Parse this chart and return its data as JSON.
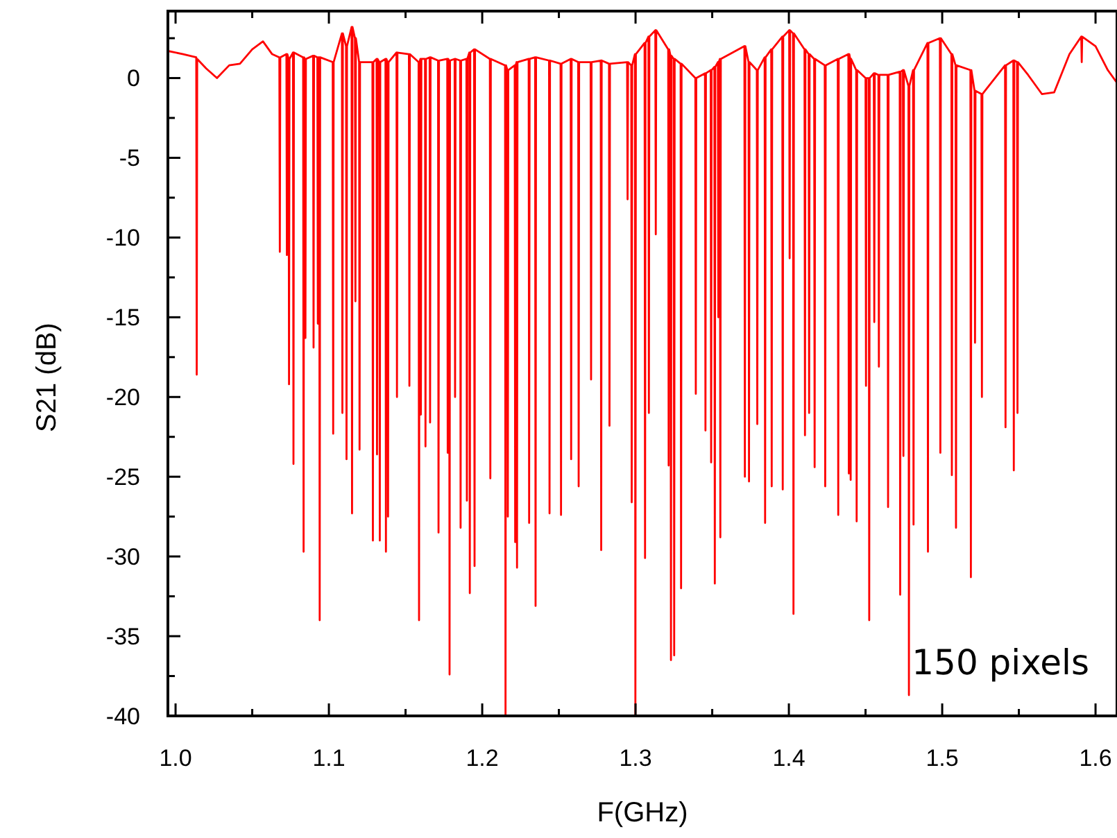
{
  "chart_data": {
    "type": "line",
    "xlabel": "F(GHz)",
    "ylabel": "S21 (dB)",
    "xlim": [
      0.995,
      1.614
    ],
    "ylim": [
      -40,
      4.2
    ],
    "xticks": [
      {
        "value": 1.0,
        "label": "1.0"
      },
      {
        "value": 1.05,
        "label": null
      },
      {
        "value": 1.1,
        "label": "1.1"
      },
      {
        "value": 1.15,
        "label": null
      },
      {
        "value": 1.2,
        "label": "1.2"
      },
      {
        "value": 1.25,
        "label": null
      },
      {
        "value": 1.3,
        "label": "1.3"
      },
      {
        "value": 1.35,
        "label": null
      },
      {
        "value": 1.4,
        "label": "1.4"
      },
      {
        "value": 1.45,
        "label": null
      },
      {
        "value": 1.5,
        "label": "1.5"
      },
      {
        "value": 1.55,
        "label": null
      },
      {
        "value": 1.6,
        "label": "1.6"
      }
    ],
    "yticks": [
      0,
      {
        "value": -2.5,
        "label": null
      },
      -5,
      {
        "value": -7.5,
        "label": null
      },
      -10,
      {
        "value": -12.5,
        "label": null
      },
      -15,
      {
        "value": -17.5,
        "label": null
      },
      -20,
      {
        "value": -22.5,
        "label": null
      },
      -25,
      {
        "value": -27.5,
        "label": null
      },
      -30,
      {
        "value": -32.5,
        "label": null
      },
      -35,
      {
        "value": -37.5,
        "label": null
      },
      -40,
      {
        "value": 2.5,
        "label": null
      }
    ],
    "grid": false,
    "marker": "none",
    "line_style": "solid",
    "annotations": [
      "150 pixels"
    ],
    "series": [
      {
        "color": "#ff0000",
        "x": [
          0.995,
          1.005,
          1.0135,
          1.0138,
          1.0141,
          1.02,
          1.027,
          1.035,
          1.042,
          1.05,
          1.057,
          1.063,
          1.0677,
          1.068,
          1.0683,
          1.0723,
          1.0726,
          1.0729,
          1.0737,
          1.074,
          1.0743,
          1.0766,
          1.0769,
          1.0772,
          1.0832,
          1.0835,
          1.0838,
          1.0844,
          1.0847,
          1.085,
          1.0897,
          1.09,
          1.0903,
          1.0925,
          1.0928,
          1.0931,
          1.0937,
          1.094,
          1.0943,
          1.1025,
          1.1028,
          1.1031,
          1.1085,
          1.1088,
          1.1091,
          1.1112,
          1.1115,
          1.1118,
          1.1148,
          1.1151,
          1.1154,
          1.117,
          1.1173,
          1.1176,
          1.1197,
          1.12,
          1.1203,
          1.1284,
          1.1287,
          1.129,
          1.1311,
          1.1314,
          1.1317,
          1.1329,
          1.1332,
          1.1335,
          1.1369,
          1.1372,
          1.1375,
          1.1383,
          1.1386,
          1.1389,
          1.1441,
          1.1444,
          1.1447,
          1.1522,
          1.1525,
          1.1528,
          1.1585,
          1.1588,
          1.1591,
          1.1597,
          1.16,
          1.1603,
          1.1627,
          1.163,
          1.1633,
          1.1657,
          1.166,
          1.1663,
          1.1712,
          1.1715,
          1.1718,
          1.1772,
          1.1775,
          1.1778,
          1.1784,
          1.1787,
          1.179,
          1.182,
          1.1823,
          1.1826,
          1.1856,
          1.1859,
          1.1862,
          1.1897,
          1.19,
          1.1903,
          1.1916,
          1.1919,
          1.1922,
          1.1947,
          1.195,
          1.1953,
          1.205,
          1.2053,
          1.2056,
          1.2149,
          1.2152,
          1.2155,
          1.2164,
          1.2167,
          1.217,
          1.2212,
          1.2215,
          1.2218,
          1.2224,
          1.2227,
          1.223,
          1.2303,
          1.2306,
          1.2309,
          1.2345,
          1.2348,
          1.2351,
          1.2436,
          1.2439,
          1.2442,
          1.2511,
          1.2514,
          1.2517,
          1.2577,
          1.258,
          1.2583,
          1.2626,
          1.2629,
          1.2632,
          1.2707,
          1.271,
          1.2713,
          1.2773,
          1.2776,
          1.2779,
          1.2827,
          1.283,
          1.2833,
          1.2945,
          1.2948,
          1.2951,
          1.2972,
          1.2975,
          1.2978,
          1.2996,
          1.2999,
          1.3002,
          1.3059,
          1.3062,
          1.3065,
          1.3084,
          1.3087,
          1.309,
          1.3129,
          1.3132,
          1.3135,
          1.3213,
          1.3216,
          1.3219,
          1.3228,
          1.3231,
          1.3234,
          1.3249,
          1.3252,
          1.3255,
          1.3294,
          1.3297,
          1.33,
          1.339,
          1.3393,
          1.3396,
          1.3453,
          1.3456,
          1.3459,
          1.349,
          1.3493,
          1.3496,
          1.3514,
          1.3517,
          1.352,
          1.3537,
          1.354,
          1.3543,
          1.355,
          1.3553,
          1.3556,
          1.371,
          1.3713,
          1.3716,
          1.3737,
          1.374,
          1.3743,
          1.3791,
          1.3794,
          1.3797,
          1.3842,
          1.3845,
          1.3848,
          1.3885,
          1.3888,
          1.3891,
          1.3957,
          1.396,
          1.3963,
          1.4002,
          1.4005,
          1.4008,
          1.4027,
          1.403,
          1.4033,
          1.4102,
          1.4105,
          1.4108,
          1.4129,
          1.4132,
          1.4135,
          1.4165,
          1.4168,
          1.4171,
          1.4234,
          1.4237,
          1.424,
          1.4319,
          1.4322,
          1.4325,
          1.4388,
          1.4391,
          1.4394,
          1.44,
          1.4403,
          1.4406,
          1.4439,
          1.4442,
          1.4445,
          1.45,
          1.4503,
          1.4506,
          1.4521,
          1.4524,
          1.4527,
          1.4554,
          1.4557,
          1.456,
          1.4584,
          1.4587,
          1.459,
          1.4644,
          1.4647,
          1.465,
          1.4723,
          1.4726,
          1.4729,
          1.4744,
          1.4747,
          1.475,
          1.478,
          1.4783,
          1.4786,
          1.481,
          1.4813,
          1.4816,
          1.4904,
          1.4907,
          1.491,
          1.4985,
          1.4988,
          1.4991,
          1.506,
          1.5063,
          1.5066,
          1.5087,
          1.509,
          1.5093,
          1.5184,
          1.5187,
          1.519,
          1.5211,
          1.5214,
          1.5217,
          1.5256,
          1.5259,
          1.5262,
          1.541,
          1.5413,
          1.5416,
          1.5464,
          1.5467,
          1.547,
          1.5488,
          1.5491,
          1.5494,
          1.556,
          1.565,
          1.573,
          1.583,
          1.5907,
          1.591,
          1.5913,
          1.6,
          1.608,
          1.614
        ],
        "values": [
          1.7,
          1.5,
          1.3,
          -18.6,
          1.2,
          0.6,
          0.0,
          0.8,
          0.9,
          1.8,
          2.3,
          1.5,
          1.3,
          -10.9,
          1.3,
          1.5,
          -11.1,
          1.5,
          1.2,
          -19.2,
          1.2,
          1.6,
          -24.2,
          1.6,
          1.3,
          -29.7,
          1.3,
          1.2,
          -16.3,
          1.2,
          1.4,
          -16.9,
          1.4,
          1.3,
          -15.4,
          1.3,
          1.3,
          -34.0,
          1.3,
          1.0,
          -22.3,
          1.0,
          2.8,
          -21.0,
          2.8,
          2.0,
          -23.9,
          2.0,
          3.2,
          -27.3,
          3.2,
          2.5,
          -14.0,
          2.5,
          1.0,
          -23.3,
          1.0,
          1.0,
          -29.0,
          1.0,
          1.2,
          -23.6,
          1.2,
          1.0,
          -29.0,
          1.0,
          1.2,
          -29.7,
          1.2,
          1.0,
          -27.5,
          1.0,
          1.6,
          -20.0,
          1.6,
          1.5,
          -19.3,
          1.5,
          1.0,
          -34.0,
          1.0,
          1.2,
          -21.1,
          1.2,
          1.2,
          -23.1,
          1.2,
          1.3,
          -21.6,
          1.3,
          1.1,
          -28.5,
          1.1,
          1.2,
          -23.5,
          1.2,
          1.1,
          -37.4,
          1.1,
          1.2,
          -20.0,
          1.2,
          1.1,
          -28.2,
          1.1,
          1.2,
          -26.5,
          1.2,
          1.6,
          -32.3,
          1.6,
          1.8,
          -30.6,
          1.8,
          1.2,
          -25.1,
          1.2,
          0.8,
          -40,
          0.8,
          0.5,
          -27.5,
          0.5,
          0.8,
          -29.1,
          0.8,
          1.0,
          -30.7,
          1.0,
          1.2,
          -27.9,
          1.2,
          1.3,
          -33.1,
          1.3,
          1.1,
          -27.3,
          1.1,
          0.9,
          -27.4,
          0.9,
          1.2,
          -23.9,
          1.2,
          1.0,
          -25.6,
          1.0,
          1.0,
          -18.9,
          1.0,
          1.1,
          -29.6,
          1.1,
          0.9,
          -21.8,
          0.9,
          1.0,
          -7.6,
          1.0,
          0.8,
          -26.6,
          0.8,
          1.5,
          -40,
          1.5,
          2.2,
          -30.1,
          2.2,
          2.6,
          -21.0,
          2.6,
          3.0,
          -9.8,
          3.0,
          1.8,
          -24.3,
          1.8,
          1.4,
          -36.5,
          1.4,
          1.2,
          -36.2,
          1.2,
          0.9,
          -32.0,
          0.9,
          0.0,
          -19.8,
          0.0,
          0.3,
          -22.1,
          0.3,
          0.5,
          -24.1,
          0.5,
          0.7,
          -31.7,
          0.7,
          1.0,
          -15.0,
          1.0,
          1.2,
          -28.8,
          1.2,
          2.0,
          -25.0,
          2.0,
          1.0,
          -25.3,
          1.0,
          0.5,
          -21.7,
          0.5,
          1.3,
          -27.9,
          1.3,
          1.8,
          -25.6,
          1.8,
          2.6,
          -25.8,
          2.6,
          3.0,
          -11.3,
          3.0,
          2.8,
          -33.6,
          2.8,
          1.8,
          -22.4,
          1.8,
          1.5,
          -21.0,
          1.5,
          1.2,
          -24.4,
          1.2,
          0.8,
          -25.6,
          0.8,
          1.2,
          -27.4,
          1.2,
          1.5,
          -24.8,
          1.5,
          1.2,
          -25.2,
          1.2,
          0.5,
          -27.8,
          0.5,
          0.0,
          -19.3,
          0.0,
          0.0,
          -34.0,
          0.0,
          0.3,
          -15.3,
          0.3,
          0.2,
          -18.1,
          0.2,
          0.2,
          -26.9,
          0.2,
          0.4,
          -32.4,
          0.4,
          0.5,
          -23.7,
          0.5,
          -0.5,
          -38.7,
          -0.5,
          0.5,
          -28.0,
          0.5,
          2.2,
          -29.7,
          2.2,
          2.5,
          -23.5,
          2.5,
          1.5,
          -24.9,
          1.5,
          0.8,
          -28.2,
          0.8,
          0.5,
          -31.3,
          0.5,
          -0.8,
          -16.6,
          -0.8,
          -1.0,
          -20.0,
          -1.0,
          0.8,
          -21.9,
          0.8,
          1.1,
          -24.6,
          1.1,
          1.0,
          -21.0,
          1.0,
          0.2,
          -1.0,
          -0.9,
          1.5,
          2.6,
          1.0,
          2.6,
          2.0,
          0.5,
          -0.3
        ]
      }
    ]
  }
}
